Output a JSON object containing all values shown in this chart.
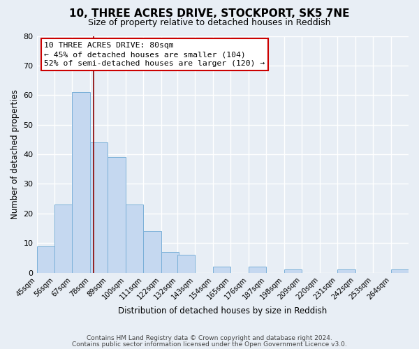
{
  "title": "10, THREE ACRES DRIVE, STOCKPORT, SK5 7NE",
  "subtitle": "Size of property relative to detached houses in Reddish",
  "xlabel": "Distribution of detached houses by size in Reddish",
  "ylabel": "Number of detached properties",
  "bar_color": "#c5d8f0",
  "bar_edge_color": "#7ab0d8",
  "bg_color": "#e8eef5",
  "grid_color": "#ffffff",
  "categories": [
    "45sqm",
    "56sqm",
    "67sqm",
    "78sqm",
    "89sqm",
    "100sqm",
    "111sqm",
    "122sqm",
    "132sqm",
    "143sqm",
    "154sqm",
    "165sqm",
    "176sqm",
    "187sqm",
    "198sqm",
    "209sqm",
    "220sqm",
    "231sqm",
    "242sqm",
    "253sqm",
    "264sqm"
  ],
  "values": [
    9,
    23,
    61,
    44,
    39,
    23,
    14,
    7,
    6,
    0,
    2,
    0,
    2,
    0,
    1,
    0,
    0,
    1,
    0,
    0,
    1
  ],
  "bin_width": 11,
  "bin_starts": [
    45,
    56,
    67,
    78,
    89,
    100,
    111,
    122,
    132,
    143,
    154,
    165,
    176,
    187,
    198,
    209,
    220,
    231,
    242,
    253,
    264
  ],
  "xlim": [
    45,
    275
  ],
  "property_line_x": 80,
  "property_line_color": "#880000",
  "ylim": [
    0,
    80
  ],
  "yticks": [
    0,
    10,
    20,
    30,
    40,
    50,
    60,
    70,
    80
  ],
  "annotation_title": "10 THREE ACRES DRIVE: 80sqm",
  "annotation_line1": "← 45% of detached houses are smaller (104)",
  "annotation_line2": "52% of semi-detached houses are larger (120) →",
  "annotation_box_color": "#ffffff",
  "annotation_border_color": "#cc0000",
  "footer1": "Contains HM Land Registry data © Crown copyright and database right 2024.",
  "footer2": "Contains public sector information licensed under the Open Government Licence v3.0."
}
